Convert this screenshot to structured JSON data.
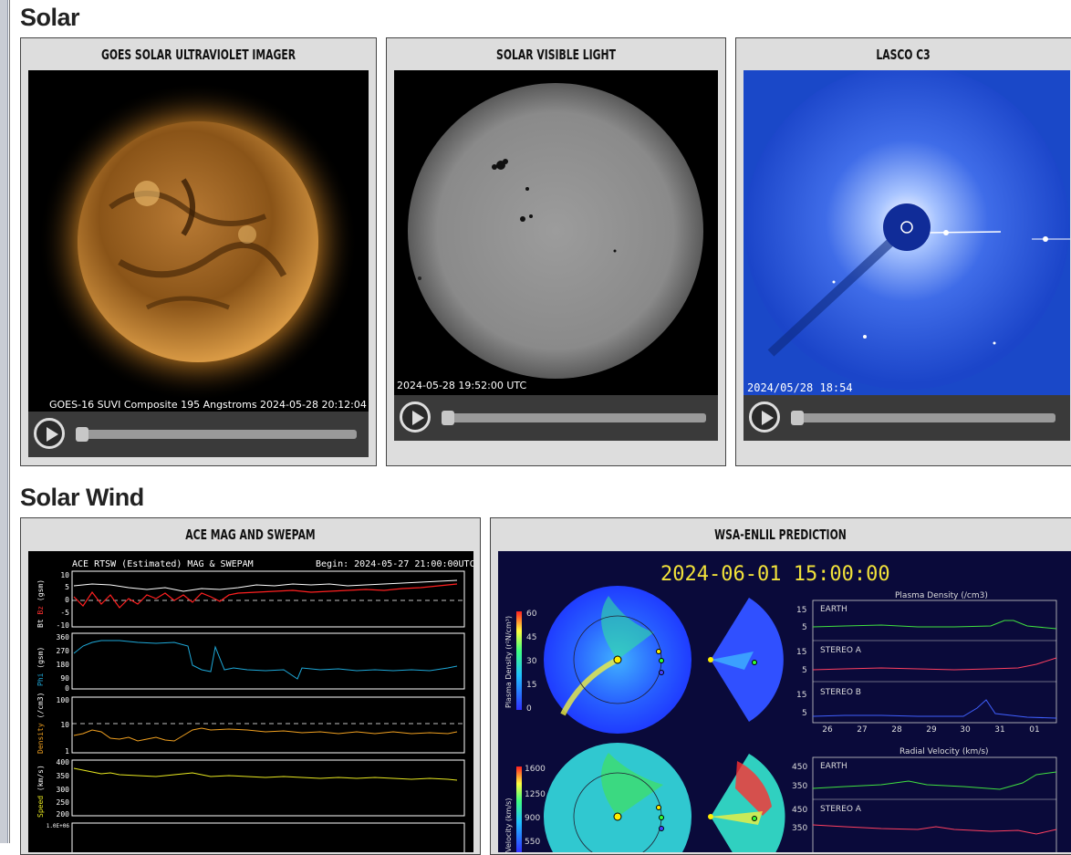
{
  "sections": {
    "solar": "Solar",
    "solar_wind": "Solar Wind"
  },
  "panels": {
    "suvi": {
      "title": "GOES SOLAR ULTRAVIOLET IMAGER",
      "caption": "GOES-16 SUVI Composite 195 Angstroms 2024-05-28 20:12:04"
    },
    "visible": {
      "title": "SOLAR VISIBLE LIGHT",
      "caption": "2024-05-28 19:52:00 UTC"
    },
    "lasco": {
      "title": "LASCO C3",
      "caption": "2024/05/28 18:54"
    },
    "ace": {
      "title": "ACE MAG AND SWEPAM",
      "plot_title": "ACE RTSW (Estimated) MAG & SWEPAM",
      "begin": "Begin: 2024-05-27 21:00:00UTC",
      "labels": {
        "bt": "Bt",
        "bz": "Bz",
        "gsm1": "(gsm)",
        "phi": "Phi",
        "gsm2": "(gsm)",
        "density": "Density",
        "dunit": "(/cm3)",
        "speed": "Speed",
        "sunit": "(km/s)"
      },
      "ticks": {
        "bz": [
          "10",
          "5",
          "0",
          "-5",
          "-10"
        ],
        "phi": [
          "360",
          "270",
          "180",
          "90",
          "0"
        ],
        "density": [
          "100",
          "10",
          "1"
        ],
        "speed": [
          "400",
          "350",
          "300",
          "250",
          "200"
        ],
        "temp": "1.0E+06"
      }
    },
    "enlil": {
      "title": "WSA-ENLIL PREDICTION",
      "timestamp": "2024-06-01 15:00:00",
      "density_title": "Plasma Density (/cm3)",
      "velocity_title": "Radial Velocity (km/s)",
      "density_scale_label": "Plasma Density (r²N/cm³)",
      "density_scale": [
        "60",
        "45",
        "30",
        "15",
        "0"
      ],
      "velocity_scale_label": "Velocity (km/s)",
      "velocity_scale": [
        "1600",
        "1250",
        "900",
        "550"
      ],
      "density_plots": [
        {
          "name": "EARTH",
          "ticks": [
            "15",
            "5"
          ]
        },
        {
          "name": "STEREO A",
          "ticks": [
            "15",
            "5"
          ]
        },
        {
          "name": "STEREO B",
          "ticks": [
            "15",
            "5"
          ]
        }
      ],
      "velocity_plots": [
        {
          "name": "EARTH",
          "ticks": [
            "450",
            "350"
          ]
        },
        {
          "name": "STEREO A",
          "ticks": [
            "450",
            "350"
          ]
        }
      ],
      "days": [
        "26",
        "27",
        "28",
        "29",
        "30",
        "31",
        "01"
      ]
    }
  },
  "colors": {
    "bt": "#ffffff",
    "bz": "#ff2020",
    "phi": "#1ea8d8",
    "density": "#f0a020",
    "speed": "#e8e820",
    "enlil_text": "#f2e23a"
  }
}
